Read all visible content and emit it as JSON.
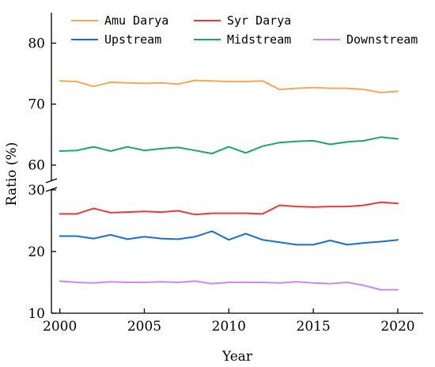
{
  "chart_data": {
    "type": "line",
    "xlabel": "Year",
    "ylabel": "Ratio (%)",
    "x": [
      2000,
      2001,
      2002,
      2003,
      2004,
      2005,
      2006,
      2007,
      2008,
      2009,
      2010,
      2011,
      2012,
      2013,
      2014,
      2015,
      2016,
      2017,
      2018,
      2019,
      2020
    ],
    "x_ticks": [
      "2000",
      "2005",
      "2010",
      "2015",
      "2020"
    ],
    "xlim": [
      1999.5,
      2021.5
    ],
    "y_axis_break": true,
    "upper_ylim": [
      57.5,
      85
    ],
    "upper_ticks": [
      "60",
      "70",
      "80"
    ],
    "lower_ylim": [
      10,
      30
    ],
    "lower_ticks": [
      "10",
      "20",
      "30"
    ],
    "legend_position": "top",
    "series": [
      {
        "name": "Amu Darya",
        "color": "#F5A956",
        "values": [
          73.8,
          73.7,
          72.9,
          73.6,
          73.5,
          73.4,
          73.5,
          73.3,
          73.9,
          73.8,
          73.7,
          73.7,
          73.8,
          72.4,
          72.6,
          72.7,
          72.6,
          72.6,
          72.4,
          71.9,
          72.1
        ]
      },
      {
        "name": "Syr Darya",
        "color": "#E8393C",
        "values": [
          26.1,
          26.1,
          27.0,
          26.3,
          26.4,
          26.5,
          26.4,
          26.6,
          26.0,
          26.2,
          26.2,
          26.2,
          26.1,
          27.5,
          27.3,
          27.2,
          27.3,
          27.3,
          27.5,
          28.0,
          27.8
        ]
      },
      {
        "name": "Upstream",
        "color": "#1A6FCC",
        "values": [
          22.5,
          22.5,
          22.1,
          22.7,
          22.0,
          22.4,
          22.1,
          22.0,
          22.4,
          23.3,
          21.9,
          22.9,
          21.9,
          21.5,
          21.1,
          21.1,
          21.8,
          21.1,
          21.4,
          21.6,
          21.9
        ]
      },
      {
        "name": "Midstream",
        "color": "#1CA860",
        "values": [
          62.3,
          62.4,
          63.0,
          62.3,
          63.0,
          62.4,
          62.7,
          62.9,
          62.4,
          61.9,
          63.0,
          62.0,
          63.1,
          63.7,
          63.9,
          64.0,
          63.4,
          63.8,
          64.0,
          64.6,
          64.3
        ]
      },
      {
        "name": "Downstream",
        "color": "#C88BE8",
        "values": [
          15.2,
          15.0,
          14.9,
          15.1,
          15.0,
          15.0,
          15.1,
          15.0,
          15.2,
          14.8,
          15.0,
          15.0,
          15.0,
          14.9,
          15.1,
          14.9,
          14.8,
          15.0,
          14.5,
          13.8,
          13.8
        ]
      }
    ]
  }
}
